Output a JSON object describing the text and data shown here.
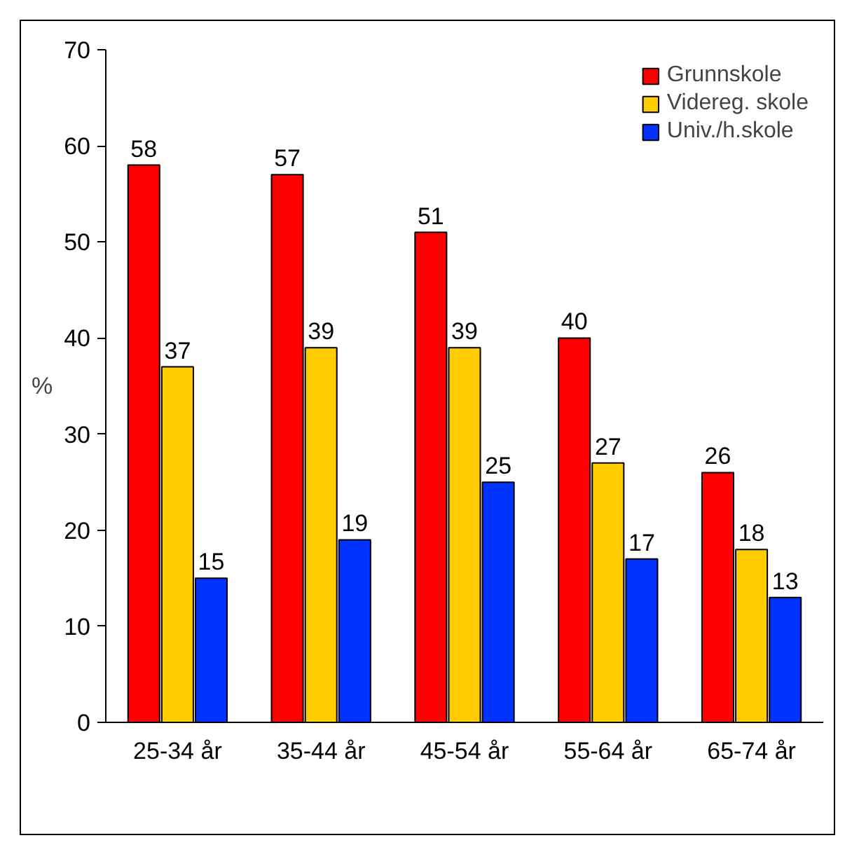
{
  "chart_data": {
    "type": "bar",
    "ylabel": "%",
    "categories": [
      "25-34 år",
      "35-44 år",
      "45-54 år",
      "55-64 år",
      "65-74 år"
    ],
    "series": [
      {
        "name": "Grunnskole",
        "color": "#ff0000",
        "values": [
          58,
          57,
          51,
          40,
          26
        ]
      },
      {
        "name": "Videreg. skole",
        "color": "#ffcc00",
        "values": [
          37,
          39,
          39,
          27,
          18
        ]
      },
      {
        "name": "Univ./h.skole",
        "color": "#0033ff",
        "values": [
          15,
          19,
          25,
          17,
          13
        ]
      }
    ],
    "ylim": [
      0,
      70
    ],
    "yticks": [
      0,
      10,
      20,
      30,
      40,
      50,
      60,
      70
    ],
    "data_labels": true,
    "legend": "top right",
    "grid": false
  }
}
